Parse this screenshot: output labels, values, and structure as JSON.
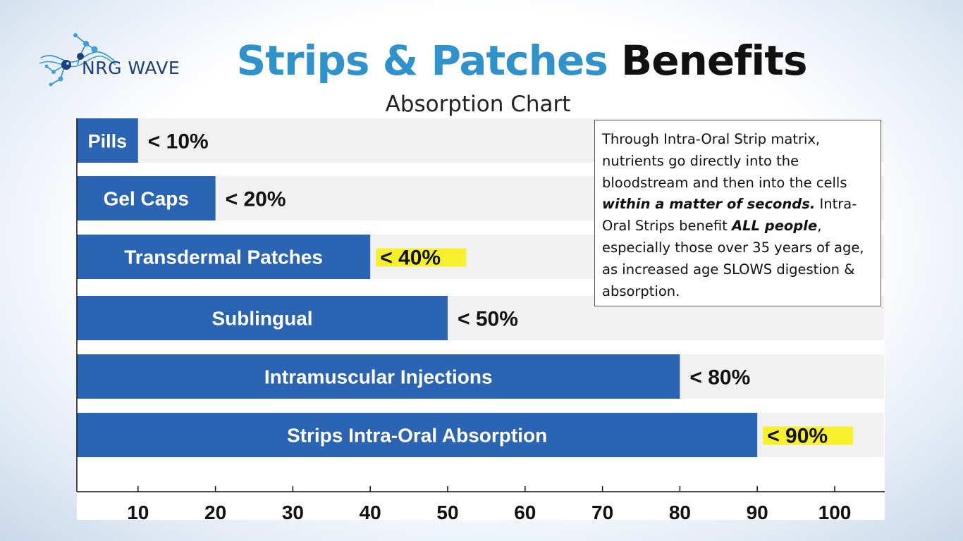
{
  "header": {
    "logo_text": "NRG WAVE",
    "title_part1": "Strips & Patches",
    "title_part2": "Benefits",
    "subtitle": "Absorption Chart"
  },
  "note": {
    "line1": "Through Intra-Oral Strip matrix, nutrients go directly into the bloodstream and then into the cells",
    "emphasis1": "within a matter of seconds.",
    "line2": "Intra-Oral Strips benefit",
    "emphasis2": "ALL people",
    "line3": ", especially those over 35 years of age, as increased age SLOWS digestion & absorption."
  },
  "chart_data": {
    "type": "bar",
    "orientation": "horizontal",
    "categories": [
      "Pills",
      "Gel Caps",
      "Transdermal Patches",
      "Sublingual",
      "Intramuscular Injections",
      "Strips Intra-Oral Absorption"
    ],
    "values": [
      10,
      20,
      40,
      50,
      80,
      90
    ],
    "value_labels": [
      "< 10%",
      "< 20%",
      "< 40%",
      "< 50%",
      "< 80%",
      "< 90%"
    ],
    "highlighted": [
      false,
      false,
      true,
      false,
      false,
      true
    ],
    "xlim": [
      0,
      100
    ],
    "x_ticks": [
      10,
      20,
      30,
      40,
      50,
      60,
      70,
      80,
      90,
      100
    ],
    "colors": {
      "bar": "#2b64b3",
      "track": "#f1f1f1",
      "highlight": "#f6f12a",
      "title_blue": "#2f92cb"
    }
  }
}
